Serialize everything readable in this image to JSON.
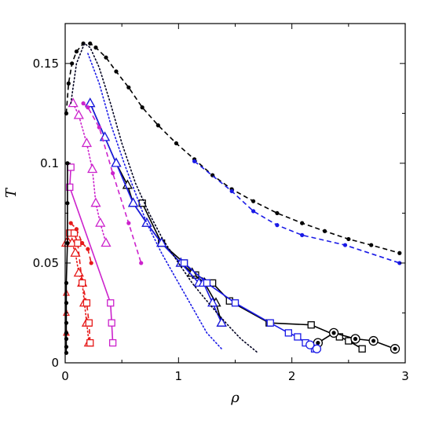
{
  "chart_data": {
    "type": "line",
    "xlabel": "ρ",
    "ylabel": "T",
    "xlim": [
      0,
      3
    ],
    "ylim": [
      0,
      0.17
    ],
    "xticks": [
      0,
      1,
      2,
      3
    ],
    "xtick_labels": [
      "0",
      "1",
      "2",
      "3"
    ],
    "yticks": [
      0,
      0.05,
      0.1,
      0.15
    ],
    "ytick_labels": [
      "0",
      "0.05",
      "0.1",
      "0.15"
    ],
    "grid": false,
    "series": [
      {
        "color": "#000000",
        "dash": "dashed",
        "marker": "dot",
        "x": [
          0.01,
          0.03,
          0.06,
          0.1,
          0.16,
          0.22,
          0.27,
          0.36,
          0.45,
          0.56,
          0.68,
          0.82,
          0.98,
          1.14,
          1.3,
          1.47,
          1.66,
          1.87,
          2.09,
          2.29,
          2.5,
          2.7,
          2.95
        ],
        "y": [
          0.125,
          0.14,
          0.15,
          0.156,
          0.16,
          0.16,
          0.158,
          0.153,
          0.146,
          0.138,
          0.128,
          0.119,
          0.11,
          0.102,
          0.094,
          0.087,
          0.081,
          0.075,
          0.07,
          0.066,
          0.062,
          0.059,
          0.055
        ]
      },
      {
        "color": "#1a1ae6",
        "dash": "dashed",
        "marker": "dot",
        "x": [
          1.14,
          1.47,
          1.66,
          1.87,
          2.09,
          2.47,
          2.95
        ],
        "y": [
          0.101,
          0.086,
          0.076,
          0.069,
          0.064,
          0.059,
          0.05
        ]
      },
      {
        "color": "#000000",
        "dash": "solid",
        "marker": "square",
        "x": [
          0.68,
          0.85,
          1.05,
          1.15,
          1.3,
          1.45,
          1.8,
          2.17,
          2.42,
          2.5,
          2.62
        ],
        "y": [
          0.08,
          0.06,
          0.05,
          0.044,
          0.04,
          0.031,
          0.02,
          0.019,
          0.013,
          0.011,
          0.007
        ]
      },
      {
        "color": "#000000",
        "dash": "solid",
        "marker": "circle-dot",
        "x": [
          2.23,
          2.37,
          2.56,
          2.72,
          2.91
        ],
        "y": [
          0.01,
          0.015,
          0.012,
          0.011,
          0.007
        ]
      },
      {
        "color": "#000000",
        "dash": "solid",
        "marker": "triangle",
        "x": [
          0.22,
          0.35,
          0.45,
          0.55,
          0.6,
          0.72,
          0.85,
          1.02,
          1.12,
          1.23,
          1.33,
          1.38
        ],
        "y": [
          0.13,
          0.113,
          0.1,
          0.089,
          0.08,
          0.07,
          0.06,
          0.05,
          0.045,
          0.04,
          0.03,
          0.02
        ]
      },
      {
        "color": "#1a1ae6",
        "dash": "solid",
        "marker": "triangle",
        "x": [
          0.22,
          0.35,
          0.45,
          0.6,
          0.72,
          0.85,
          1.02,
          1.18,
          1.22,
          1.3,
          1.38
        ],
        "y": [
          0.13,
          0.113,
          0.1,
          0.08,
          0.07,
          0.06,
          0.05,
          0.04,
          0.04,
          0.03,
          0.02
        ]
      },
      {
        "color": "#1a1ae6",
        "dash": "solid",
        "marker": "square",
        "x": [
          1.05,
          1.25,
          1.5,
          1.81,
          1.97,
          2.05,
          2.12,
          2.2
        ],
        "y": [
          0.05,
          0.04,
          0.03,
          0.02,
          0.015,
          0.013,
          0.01,
          0.007
        ]
      },
      {
        "color": "#1a1ae6",
        "dash": "solid",
        "marker": "circle",
        "x": [
          2.16,
          2.22
        ],
        "y": [
          0.009,
          0.007
        ]
      },
      {
        "color": "#cc22cc",
        "dash": "dotted",
        "marker": "triangle",
        "x": [
          0.07,
          0.12,
          0.19,
          0.24,
          0.27,
          0.31,
          0.36
        ],
        "y": [
          0.13,
          0.124,
          0.11,
          0.097,
          0.08,
          0.07,
          0.06
        ]
      },
      {
        "color": "#cc22cc",
        "dash": "dashed",
        "marker": "dot",
        "x": [
          0.16,
          0.2,
          0.3,
          0.42,
          0.56,
          0.67
        ],
        "y": [
          0.13,
          0.128,
          0.118,
          0.095,
          0.07,
          0.05
        ]
      },
      {
        "color": "#cc22cc",
        "dash": "solid",
        "marker": "square",
        "x": [
          0.05,
          0.04,
          0.4,
          0.41,
          0.42
        ],
        "y": [
          0.098,
          0.088,
          0.03,
          0.02,
          0.01
        ]
      },
      {
        "color": "#e61a1a",
        "dash": "dotted",
        "marker": "triangle",
        "x": [
          0.01,
          0.03,
          0.06,
          0.09,
          0.12,
          0.15,
          0.17,
          0.19,
          0.21
        ],
        "y": [
          0.06,
          0.06,
          0.06,
          0.055,
          0.045,
          0.04,
          0.03,
          0.02,
          0.01
        ]
      },
      {
        "color": "#e61a1a",
        "dash": "dashed",
        "marker": "square",
        "x": [
          0.04,
          0.08,
          0.11,
          0.15,
          0.19,
          0.21,
          0.22
        ],
        "y": [
          0.065,
          0.065,
          0.06,
          0.04,
          0.03,
          0.02,
          0.01
        ]
      },
      {
        "color": "#e61a1a",
        "dash": "dashed",
        "marker": "dot",
        "x": [
          0.05,
          0.1,
          0.15,
          0.2,
          0.23
        ],
        "y": [
          0.07,
          0.067,
          0.06,
          0.057,
          0.05
        ]
      },
      {
        "color": "#e61a1a",
        "dash": "none",
        "marker": "small-triangle",
        "x": [
          0.01,
          0.01,
          0.01
        ],
        "y": [
          0.035,
          0.025,
          0.015
        ]
      },
      {
        "color": "#000000",
        "dash": "solid",
        "marker": "dot",
        "x": [
          0.01,
          0.01,
          0.01,
          0.01,
          0.01,
          0.01,
          0.01,
          0.02,
          0.02,
          0.02
        ],
        "y": [
          0.005,
          0.008,
          0.012,
          0.015,
          0.02,
          0.03,
          0.04,
          0.06,
          0.08,
          0.1
        ]
      },
      {
        "color": "#000020",
        "dash": "dotted",
        "marker": "none",
        "x": [
          0.05,
          0.1,
          0.17,
          0.22,
          0.3,
          0.4,
          0.5,
          0.62,
          0.74,
          0.86,
          1.0,
          1.12,
          1.22,
          1.34,
          1.45,
          1.55,
          1.7
        ],
        "y": [
          0.13,
          0.15,
          0.16,
          0.158,
          0.148,
          0.13,
          0.11,
          0.09,
          0.075,
          0.062,
          0.05,
          0.04,
          0.033,
          0.025,
          0.018,
          0.012,
          0.005
        ]
      },
      {
        "color": "#1a1ae6",
        "dash": "dotted",
        "marker": "none",
        "x": [
          0.2,
          0.3,
          0.4,
          0.52,
          0.62,
          0.72,
          0.85,
          0.95,
          1.05,
          1.15,
          1.25,
          1.38
        ],
        "y": [
          0.155,
          0.14,
          0.12,
          0.1,
          0.085,
          0.07,
          0.055,
          0.045,
          0.035,
          0.025,
          0.015,
          0.007
        ]
      }
    ]
  }
}
